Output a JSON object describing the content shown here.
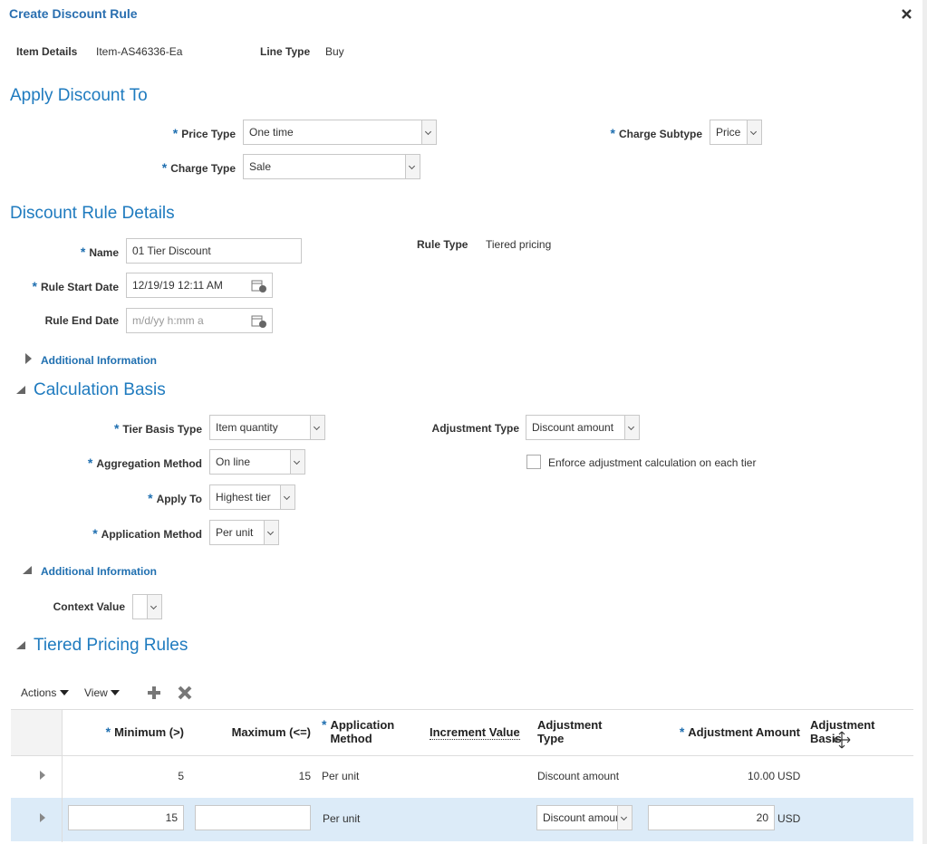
{
  "dialog": {
    "title": "Create Discount Rule"
  },
  "required_marker": "*",
  "item": {
    "item_details_label": "Item Details",
    "item_details_value": "Item-AS46336-Ea",
    "line_type_label": "Line Type",
    "line_type_value": "Buy"
  },
  "apply_discount": {
    "heading": "Apply Discount To",
    "price_type": {
      "label": "Price Type",
      "value": "One time"
    },
    "charge_type": {
      "label": "Charge Type",
      "value": "Sale"
    },
    "charge_subtype": {
      "label": "Charge Subtype",
      "value": "Price"
    }
  },
  "rule_details": {
    "heading": "Discount Rule Details",
    "name": {
      "label": "Name",
      "value": "01 Tier Discount"
    },
    "rule_type": {
      "label": "Rule Type",
      "value": "Tiered pricing"
    },
    "start_date": {
      "label": "Rule Start Date",
      "value": "12/19/19 12:11 AM"
    },
    "end_date": {
      "label": "Rule End Date",
      "placeholder": "m/d/yy h:mm a"
    },
    "additional_info": "Additional Information"
  },
  "calculation_basis": {
    "heading": "Calculation Basis",
    "tier_basis_type": {
      "label": "Tier Basis Type",
      "value": "Item quantity"
    },
    "aggregation_method": {
      "label": "Aggregation Method",
      "value": "On line"
    },
    "apply_to": {
      "label": "Apply To",
      "value": "Highest tier"
    },
    "application_method": {
      "label": "Application Method",
      "value": "Per unit"
    },
    "adjustment_type": {
      "label": "Adjustment Type",
      "value": "Discount amount"
    },
    "enforce_checkbox": "Enforce adjustment calculation on each tier",
    "additional_info": "Additional Information",
    "context_value": {
      "label": "Context Value"
    }
  },
  "tiered_rules": {
    "heading": "Tiered Pricing Rules",
    "toolbar": {
      "actions": "Actions",
      "view": "View"
    },
    "columns": [
      "Minimum (>)",
      "Maximum (<=)",
      "Application Method",
      "Increment Value",
      "Adjustment Type",
      "Adjustment Amount",
      "Adjustment Basis"
    ],
    "rows": [
      {
        "minimum": "5",
        "maximum": "15",
        "application_method": "Per unit",
        "adjustment_type": "Discount amount",
        "adjustment_amount": "10.00",
        "currency": "USD"
      },
      {
        "minimum": "15",
        "application_method": "Per unit",
        "adjustment_type": "Discount amount",
        "adjustment_amount": "20",
        "currency": "USD"
      }
    ]
  }
}
